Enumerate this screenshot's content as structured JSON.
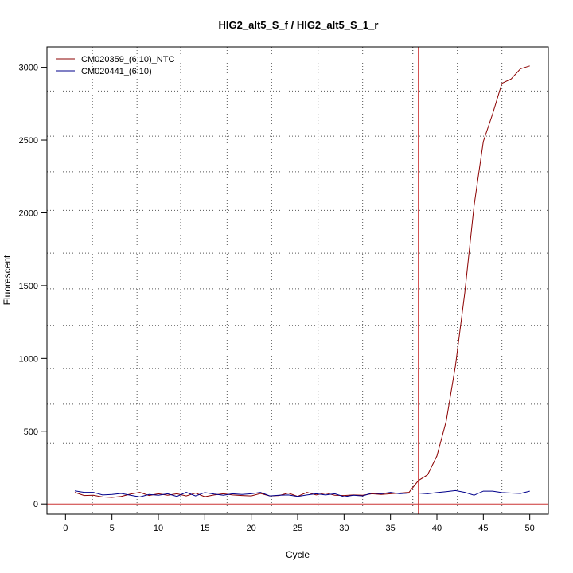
{
  "chart_data": {
    "type": "line",
    "title": "HIG2_alt5_S_f / HIG2_alt5_S_1_r",
    "xlabel": "Cycle",
    "ylabel": "Fluorescent",
    "xlim": [
      -2,
      52
    ],
    "ylim": [
      -70,
      3140
    ],
    "x_ticks": [
      0,
      5,
      10,
      15,
      20,
      25,
      30,
      35,
      40,
      45,
      50
    ],
    "y_ticks": [
      0,
      500,
      1000,
      1500,
      2000,
      2500,
      3000
    ],
    "grid": true,
    "grid_x": [
      2.9,
      7.7,
      12.4,
      17.4,
      22.2,
      27.2,
      32.0,
      37.4,
      42.2,
      47.0
    ],
    "grid_y": [
      415,
      685,
      930,
      1225,
      1478,
      1723,
      2017,
      2282,
      2527,
      2837
    ],
    "legend_position": "top-left",
    "threshold": {
      "x": 38,
      "y": 0,
      "color": "#cc3333"
    },
    "aux_vline_x": 37.4,
    "x": [
      1,
      2,
      3,
      4,
      5,
      6,
      7,
      8,
      9,
      10,
      11,
      12,
      13,
      14,
      15,
      16,
      17,
      18,
      19,
      20,
      21,
      22,
      23,
      24,
      25,
      26,
      27,
      28,
      29,
      30,
      31,
      32,
      33,
      34,
      35,
      36,
      37,
      38,
      39,
      40,
      41,
      42,
      43,
      44,
      45,
      46,
      47,
      48,
      49,
      50
    ],
    "series": [
      {
        "name": "CM020359_(6:10)_NTC",
        "color": "#8b0000",
        "values": [
          80,
          58,
          60,
          48,
          45,
          52,
          68,
          80,
          58,
          70,
          60,
          70,
          55,
          75,
          50,
          62,
          70,
          62,
          58,
          55,
          72,
          55,
          58,
          75,
          52,
          80,
          62,
          75,
          60,
          58,
          62,
          60,
          70,
          65,
          70,
          75,
          80,
          160,
          200,
          330,
          570,
          950,
          1450,
          2050,
          2490,
          2680,
          2890,
          2920,
          2990,
          3010
        ]
      },
      {
        "name": "CM020441_(6:10)",
        "color": "#00008b",
        "values": [
          90,
          80,
          80,
          62,
          65,
          72,
          60,
          48,
          65,
          60,
          70,
          52,
          80,
          55,
          78,
          68,
          60,
          70,
          65,
          70,
          80,
          55,
          60,
          62,
          52,
          62,
          70,
          62,
          70,
          50,
          60,
          55,
          75,
          70,
          80,
          70,
          75,
          75,
          70,
          78,
          85,
          92,
          80,
          60,
          88,
          88,
          78,
          75,
          72,
          88
        ]
      }
    ]
  }
}
